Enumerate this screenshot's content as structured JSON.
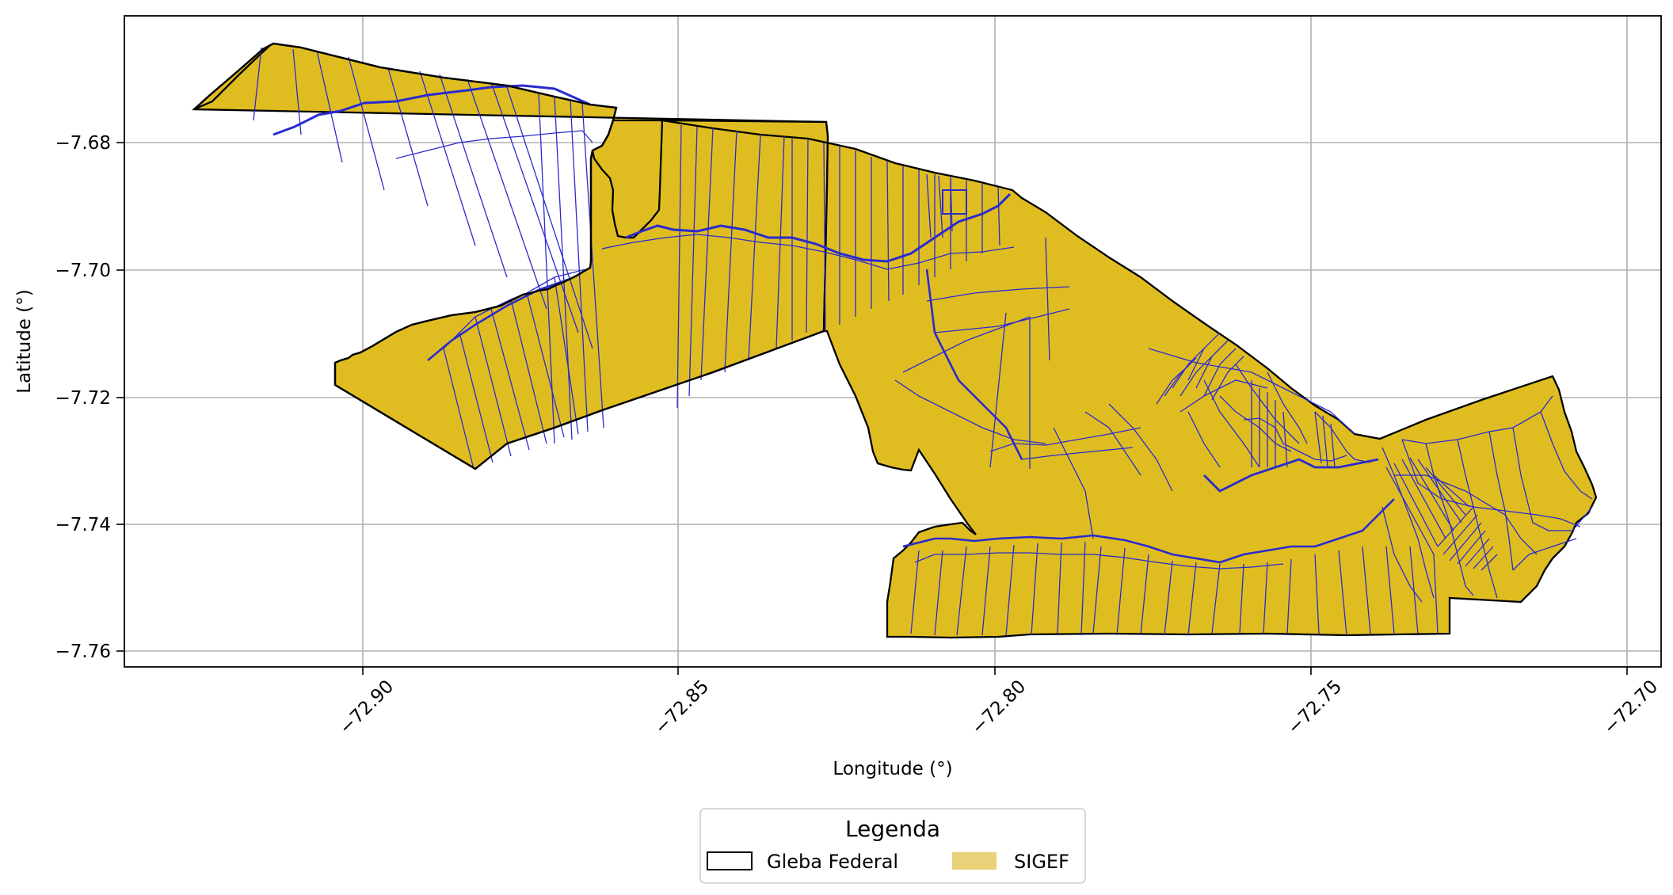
{
  "map": {
    "xlabel": "Longitude (°)",
    "ylabel": "Latitude (°)",
    "x_ticks": [
      "−72.90",
      "−72.85",
      "−72.80",
      "−72.75",
      "−72.70"
    ],
    "y_ticks": [
      "−7.68",
      "−7.70",
      "−7.72",
      "−7.74",
      "−7.76"
    ],
    "x_range": [
      -72.938,
      -72.695
    ],
    "y_range": [
      -7.7625,
      -7.6625
    ],
    "grid": true
  },
  "legend": {
    "title": "Legenda",
    "items": [
      {
        "label": "Gleba Federal",
        "style": "outline",
        "color": "#000000"
      },
      {
        "label": "SIGEF",
        "style": "fill",
        "color": "#e8d178"
      }
    ]
  },
  "colors": {
    "parcel_fill": "#dfbd21",
    "parcel_line": "#2a2acf",
    "boundary": "#000000",
    "grid": "#b0b0b0"
  }
}
